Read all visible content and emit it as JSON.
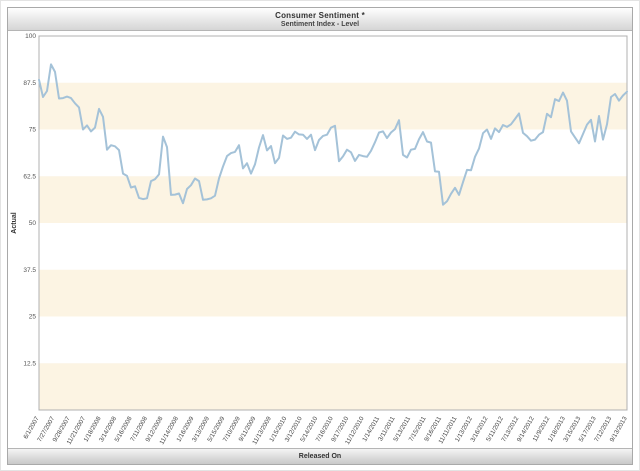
{
  "chart_data": {
    "type": "line",
    "title": "Consumer Sentiment *",
    "subtitle": "Sentiment Index - Level",
    "xlabel": "Released On",
    "ylabel": "Actual",
    "ylim": [
      0,
      100
    ],
    "yticks": [
      100,
      87.5,
      75,
      62.5,
      50,
      37.5,
      25,
      12.5
    ],
    "band_step": 12.5,
    "band_colors": [
      "#ffffff",
      "#fcf4e3"
    ],
    "line_color": "#a4c2d8",
    "frame_color": "#b0b0b0",
    "grid": "horizontal-bands",
    "legend": "none",
    "x_tick_labels": [
      "6/1/2007",
      "7/27/2007",
      "9/28/2007",
      "11/21/2007",
      "1/18/2008",
      "3/14/2008",
      "5/16/2008",
      "7/11/2008",
      "9/12/2008",
      "11/14/2008",
      "1/16/2009",
      "3/13/2009",
      "5/15/2009",
      "7/10/2009",
      "9/11/2009",
      "11/13/2009",
      "1/15/2010",
      "3/12/2010",
      "5/14/2010",
      "7/16/2010",
      "9/17/2010",
      "11/12/2010",
      "1/14/2011",
      "3/11/2011",
      "5/13/2011",
      "7/15/2011",
      "9/16/2011",
      "11/11/2011",
      "1/13/2012",
      "3/16/2012",
      "5/11/2012",
      "7/13/2012",
      "9/14/2012",
      "11/9/2012",
      "1/18/2013",
      "3/15/2013",
      "5/17/2013",
      "7/12/2013",
      "9/13/2013"
    ],
    "series": [
      {
        "name": "Sentiment Index - Level",
        "values": [
          88.3,
          83.7,
          85.3,
          92.4,
          90.4,
          83.3,
          83.4,
          83.8,
          83.4,
          82.0,
          80.9,
          75.0,
          76.1,
          74.5,
          75.5,
          80.5,
          78.4,
          69.6,
          70.8,
          70.5,
          69.5,
          63.2,
          62.6,
          59.5,
          59.8,
          56.7,
          56.4,
          56.6,
          61.2,
          61.7,
          63.0,
          73.1,
          70.3,
          57.5,
          57.6,
          57.9,
          55.3,
          59.1,
          60.1,
          61.9,
          61.2,
          56.2,
          56.3,
          56.6,
          57.3,
          61.9,
          65.1,
          67.9,
          68.7,
          69.0,
          70.8,
          64.6,
          66.0,
          63.2,
          65.7,
          70.2,
          73.5,
          69.4,
          70.6,
          66.0,
          67.4,
          73.4,
          72.5,
          72.8,
          74.4,
          73.7,
          73.6,
          72.5,
          73.6,
          69.5,
          72.2,
          73.3,
          73.6,
          75.5,
          76.0,
          66.5,
          67.8,
          69.6,
          68.9,
          66.6,
          68.2,
          67.9,
          67.7,
          69.3,
          71.6,
          74.2,
          74.5,
          72.7,
          74.2,
          75.1,
          77.5,
          68.2,
          67.5,
          69.6,
          69.8,
          72.4,
          74.3,
          71.8,
          71.5,
          63.8,
          63.7,
          54.9,
          55.8,
          57.8,
          59.4,
          57.5,
          60.9,
          64.2,
          64.1,
          67.7,
          69.9,
          74.0,
          75.0,
          72.5,
          75.3,
          74.3,
          76.2,
          75.7,
          76.4,
          77.8,
          79.3,
          74.1,
          73.2,
          72.0,
          72.3,
          73.6,
          74.3,
          79.2,
          78.3,
          83.1,
          82.6,
          84.9,
          82.7,
          74.5,
          72.9,
          71.3,
          73.8,
          76.3,
          77.6,
          71.8,
          78.6,
          72.3,
          76.4,
          83.7,
          84.5,
          82.7,
          84.1,
          85.1
        ]
      }
    ]
  }
}
